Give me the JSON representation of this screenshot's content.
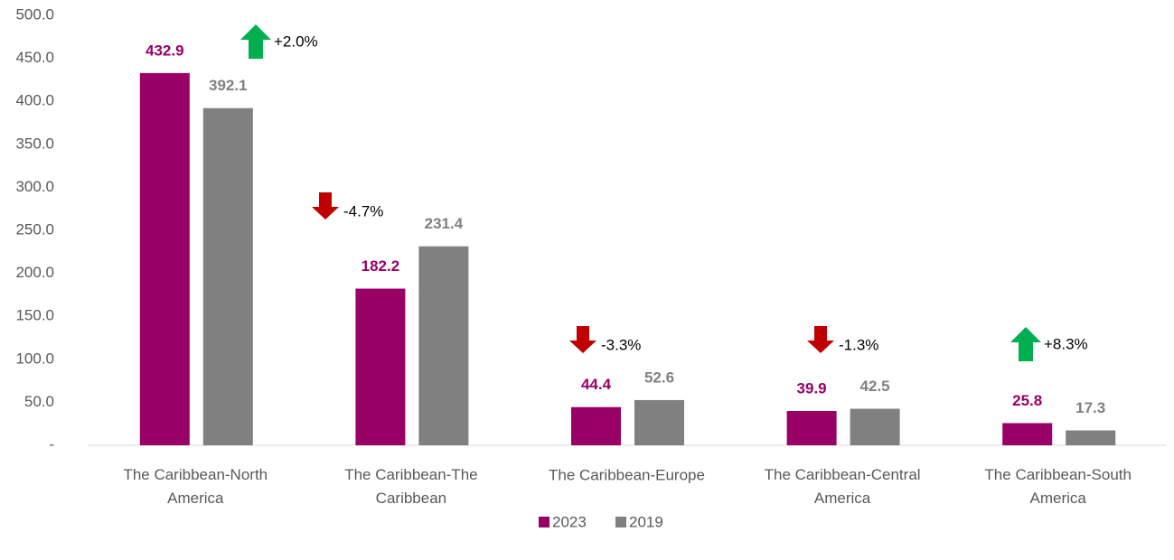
{
  "chart_data": {
    "type": "bar",
    "categories": [
      "The Caribbean-North America",
      "The Caribbean-The Caribbean",
      "The Caribbean-Europe",
      "The Caribbean-Central America",
      "The Caribbean-South America"
    ],
    "series": [
      {
        "name": "2023",
        "color": "#990066",
        "values": [
          432.9,
          182.2,
          44.4,
          39.9,
          25.8
        ]
      },
      {
        "name": "2019",
        "color": "#808080",
        "values": [
          392.1,
          231.4,
          52.6,
          42.5,
          17.3
        ]
      }
    ],
    "annotations": [
      {
        "text": "+2.0%",
        "direction": "up",
        "color": "#00b050"
      },
      {
        "text": "-4.7%",
        "direction": "down",
        "color": "#c00000"
      },
      {
        "text": "-3.3%",
        "direction": "down",
        "color": "#c00000"
      },
      {
        "text": "-1.3%",
        "direction": "down",
        "color": "#c00000"
      },
      {
        "text": "+8.3%",
        "direction": "up",
        "color": "#00b050"
      }
    ],
    "ylim": [
      0,
      500
    ],
    "yticks": [
      {
        "value": 0,
        "label": "-"
      },
      {
        "value": 50,
        "label": "50.0"
      },
      {
        "value": 100,
        "label": "100.0"
      },
      {
        "value": 150,
        "label": "150.0"
      },
      {
        "value": 200,
        "label": "200.0"
      },
      {
        "value": 250,
        "label": "250.0"
      },
      {
        "value": 300,
        "label": "300.0"
      },
      {
        "value": 350,
        "label": "350.0"
      },
      {
        "value": 400,
        "label": "400.0"
      },
      {
        "value": 450,
        "label": "450.0"
      },
      {
        "value": 500,
        "label": "500.0"
      }
    ],
    "grid": false,
    "legend": "bottom"
  }
}
